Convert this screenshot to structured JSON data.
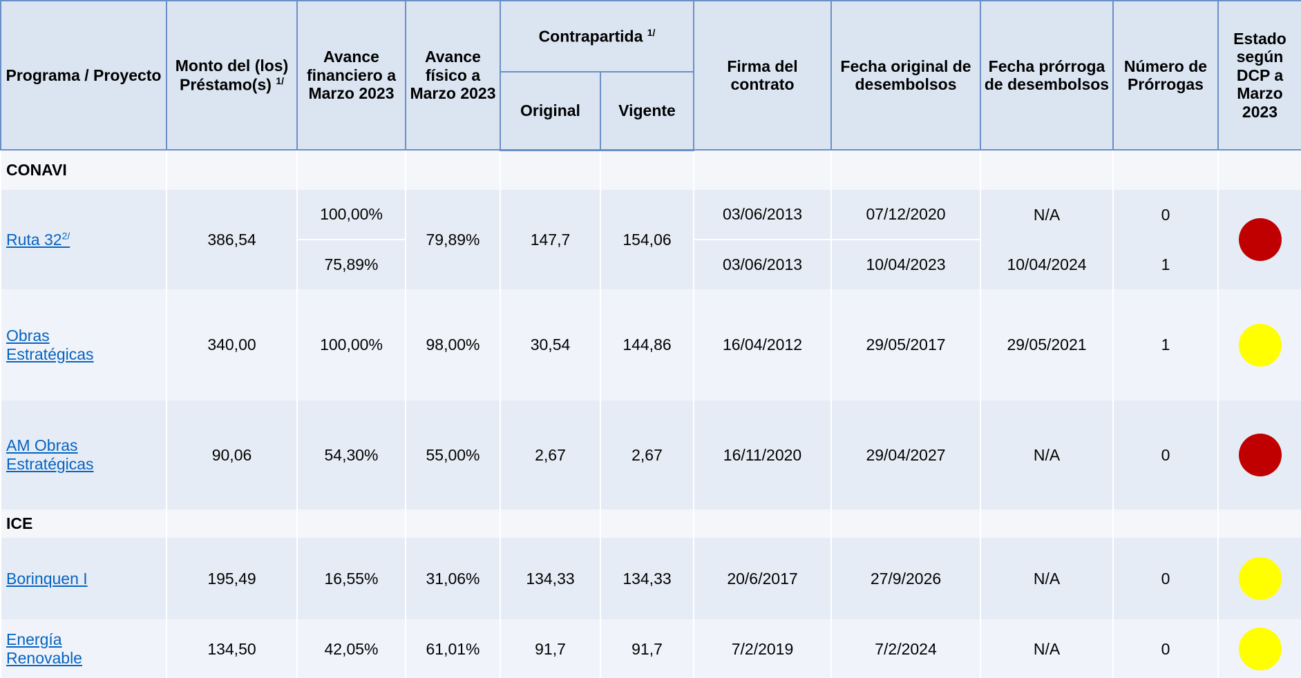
{
  "header": {
    "programa": "Programa / Proyecto",
    "monto": "Monto del (los) Préstamo(s)",
    "monto_note": "1/",
    "avance_financiero": "Avance financiero a Marzo 2023",
    "avance_fisico": "Avance físico a Marzo 2023",
    "contrapartida": "Contrapartida",
    "contrapartida_note": "1/",
    "original": "Original",
    "vigente": "Vigente",
    "firma": "Firma del contrato",
    "fecha_original": "Fecha original de desembolsos",
    "fecha_prorroga": "Fecha prórroga de desembolsos",
    "numero_prorrogas": "Número de Prórrogas",
    "estado": "Estado según DCP a Marzo 2023"
  },
  "groups": [
    {
      "name": "CONAVI",
      "projects": [
        {
          "name": "Ruta 32",
          "note": "2/",
          "monto": "386,54",
          "avance_financiero": [
            "100,00%",
            "75,89%"
          ],
          "avance_fisico": "79,89%",
          "original": "147,7",
          "vigente": "154,06",
          "firma": [
            "03/06/2013",
            "03/06/2013"
          ],
          "fecha_original": [
            "07/12/2020",
            "10/04/2023"
          ],
          "fecha_prorroga": [
            "N/A",
            "10/04/2024"
          ],
          "numero_prorrogas": [
            "0",
            "1"
          ],
          "status_color": "#c00000"
        },
        {
          "name": "Obras Estratégicas",
          "monto": "340,00",
          "avance_financiero": "100,00%",
          "avance_fisico": "98,00%",
          "original": "30,54",
          "vigente": "144,86",
          "firma": "16/04/2012",
          "fecha_original": "29/05/2017",
          "fecha_prorroga": "29/05/2021",
          "numero_prorrogas": "1",
          "status_color": "#ffff00"
        },
        {
          "name": "AM Obras Estratégicas",
          "monto": "90,06",
          "avance_financiero": "54,30%",
          "avance_fisico": "55,00%",
          "original": "2,67",
          "vigente": "2,67",
          "firma": "16/11/2020",
          "fecha_original": "29/04/2027",
          "fecha_prorroga": "N/A",
          "numero_prorrogas": "0",
          "status_color": "#c00000"
        }
      ]
    },
    {
      "name": "ICE",
      "projects": [
        {
          "name": "Borinquen I",
          "monto": "195,49",
          "avance_financiero": "16,55%",
          "avance_fisico": "31,06%",
          "original": "134,33",
          "vigente": "134,33",
          "firma": "20/6/2017",
          "fecha_original": "27/9/2026",
          "fecha_prorroga": "N/A",
          "numero_prorrogas": "0",
          "status_color": "#ffff00"
        },
        {
          "name": "Energía Renovable",
          "monto": "134,50",
          "avance_financiero": "42,05%",
          "avance_fisico": "61,01%",
          "original": "91,7",
          "vigente": "91,7",
          "firma": "7/2/2019",
          "fecha_original": "7/2/2024",
          "fecha_prorroga": "N/A",
          "numero_prorrogas": "0",
          "status_color": "#ffff00"
        }
      ]
    }
  ]
}
